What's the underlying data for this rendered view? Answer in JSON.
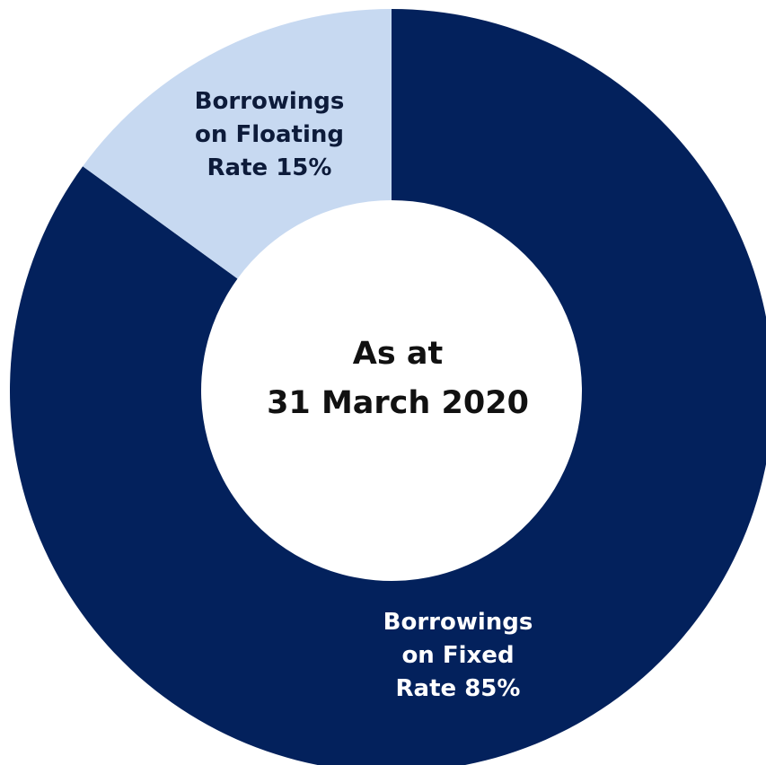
{
  "chart_data": {
    "type": "pie",
    "variant": "donut",
    "center_label": [
      "As at",
      "31 March 2020"
    ],
    "start_angle_deg": 0,
    "direction": "clockwise",
    "legend": "none",
    "slices": [
      {
        "key": "fixed",
        "value": 85,
        "color": "#03215c",
        "text_color": "#ffffff",
        "label_lines": [
          "Borrowings",
          "on Fixed",
          "Rate 85%"
        ]
      },
      {
        "key": "floating",
        "value": 15,
        "color": "#c7d9f1",
        "text_color": "#0d1b3a",
        "label_lines": [
          "Borrowings",
          "on Floating",
          "Rate 15%"
        ]
      }
    ]
  }
}
